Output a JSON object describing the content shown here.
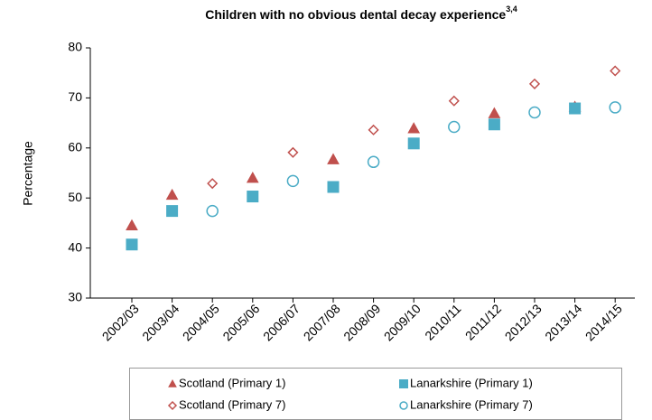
{
  "chart_data": {
    "type": "scatter",
    "title": "Children with no obvious dental decay experience",
    "title_superscript": "3,4",
    "y_label": "Percentage",
    "categories": [
      "2002/03",
      "2003/04",
      "2004/05",
      "2005/06",
      "2006/07",
      "2007/08",
      "2008/09",
      "2009/10",
      "2010/11",
      "2011/12",
      "2012/13",
      "2013/14",
      "2014/15"
    ],
    "series": [
      {
        "name": "Scotland (Primary 1)",
        "color": "#c0504d",
        "marker": "triangle",
        "filled": true,
        "values": [
          44.5,
          50.6,
          null,
          54.0,
          null,
          57.7,
          null,
          63.9,
          null,
          66.9,
          null,
          68.2,
          null
        ]
      },
      {
        "name": "Lanarkshire (Primary 1)",
        "color": "#4bacc6",
        "marker": "square",
        "filled": true,
        "values": [
          40.7,
          47.4,
          null,
          50.3,
          null,
          52.2,
          null,
          60.9,
          null,
          64.7,
          null,
          67.9,
          null
        ]
      },
      {
        "name": "Scotland (Primary 7)",
        "color": "#c0504d",
        "marker": "diamond",
        "filled": false,
        "values": [
          null,
          null,
          52.9,
          null,
          59.1,
          null,
          63.6,
          null,
          69.4,
          null,
          72.8,
          null,
          75.4
        ]
      },
      {
        "name": "Lanarkshire (Primary 7)",
        "color": "#4bacc6",
        "marker": "circle",
        "filled": false,
        "values": [
          null,
          null,
          47.4,
          null,
          53.4,
          null,
          57.2,
          null,
          64.2,
          null,
          67.1,
          null,
          68.1
        ]
      }
    ],
    "ylim": [
      30,
      80
    ],
    "yticks": [
      30,
      40,
      50,
      60,
      70,
      80
    ],
    "grid": false,
    "legend": "bottom"
  }
}
